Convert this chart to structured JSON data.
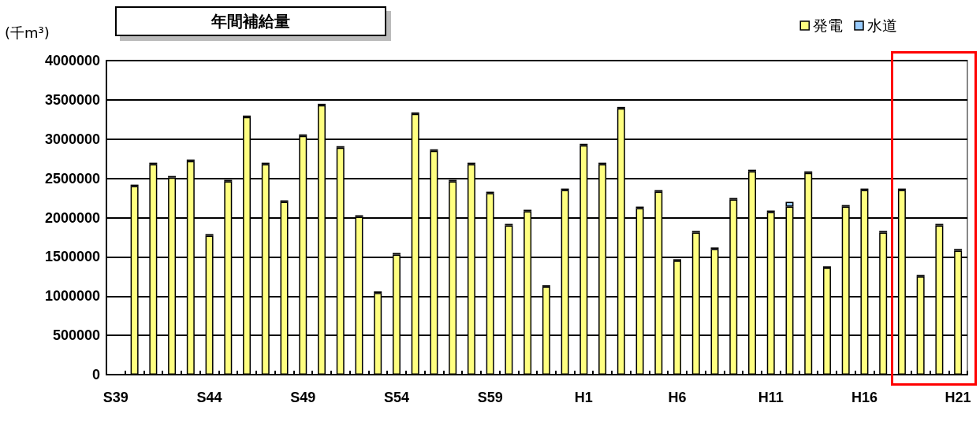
{
  "chart_data": {
    "type": "bar",
    "title": "年間補給量",
    "ylabel": "(千m³)",
    "categories": [
      "S39",
      null,
      null,
      null,
      null,
      "S44",
      null,
      null,
      null,
      null,
      "S49",
      null,
      null,
      null,
      null,
      "S54",
      null,
      null,
      null,
      null,
      "S59",
      null,
      null,
      null,
      null,
      "H1",
      null,
      null,
      null,
      null,
      "H6",
      null,
      null,
      null,
      null,
      "H11",
      null,
      null,
      null,
      null,
      "H16",
      null,
      null,
      null,
      null,
      "H21"
    ],
    "series": [
      {
        "name": "発電",
        "color": "#ffff80",
        "values": [
          null,
          2400000,
          2680000,
          2510000,
          2720000,
          1770000,
          2460000,
          3280000,
          2680000,
          2200000,
          3040000,
          3430000,
          2890000,
          2010000,
          1040000,
          1530000,
          3320000,
          2850000,
          2460000,
          2680000,
          2310000,
          1900000,
          2080000,
          1120000,
          2350000,
          2920000,
          2680000,
          3390000,
          2120000,
          2330000,
          1450000,
          1810000,
          1600000,
          2230000,
          2590000,
          2070000,
          2140000,
          2570000,
          1360000,
          2140000,
          2350000,
          1810000,
          2350000,
          1250000,
          1900000,
          1580000
        ]
      },
      {
        "name": "水道",
        "color": "#99ccff",
        "values": [
          null,
          20000,
          20000,
          20000,
          20000,
          20000,
          20000,
          20000,
          20000,
          20000,
          20000,
          20000,
          20000,
          20000,
          20000,
          20000,
          20000,
          20000,
          20000,
          20000,
          20000,
          20000,
          20000,
          20000,
          20000,
          20000,
          20000,
          20000,
          20000,
          20000,
          20000,
          20000,
          20000,
          20000,
          20000,
          20000,
          60000,
          20000,
          20000,
          20000,
          20000,
          20000,
          20000,
          20000,
          20000,
          20000
        ]
      }
    ],
    "stacked": true,
    "ylim": [
      0,
      4000000
    ],
    "yticks": [
      0,
      500000,
      1000000,
      1500000,
      2000000,
      2500000,
      3000000,
      3500000,
      4000000
    ],
    "grid": "y",
    "legend": "top right"
  }
}
